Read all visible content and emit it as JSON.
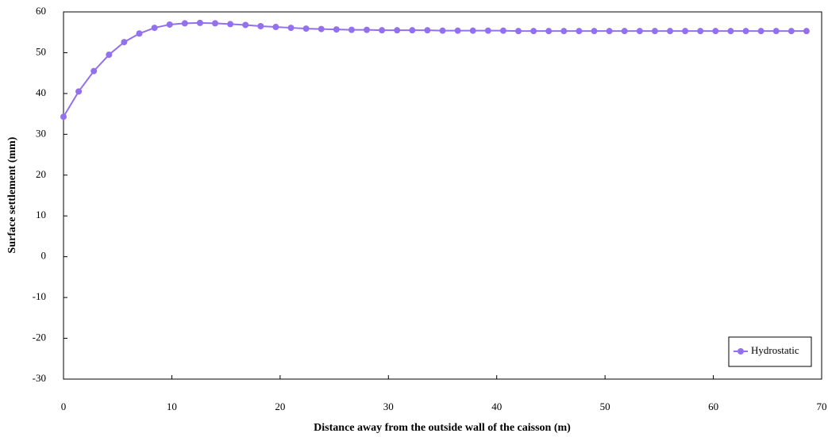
{
  "chart_data": {
    "type": "line",
    "x_label": "Distance away from the outside wall of the caisson (m)",
    "y_label": "Surface settlement (mm)",
    "x": [
      0,
      1.4,
      2.8,
      4.2,
      5.6,
      7,
      8.4,
      9.8,
      11.2,
      12.6,
      14,
      15.4,
      16.8,
      18.2,
      19.6,
      21,
      22.4,
      23.8,
      25.2,
      26.6,
      28,
      29.4,
      30.8,
      32.2,
      33.6,
      35,
      36.4,
      37.8,
      39.2,
      40.6,
      42,
      43.4,
      44.8,
      46.2,
      47.6,
      49,
      50.4,
      51.8,
      53.2,
      54.6,
      56,
      57.4,
      58.8,
      60.2,
      61.6,
      63,
      64.4,
      65.8,
      67.2,
      68.6
    ],
    "series": [
      {
        "name": "Hydrostatic",
        "color": "#9370ee",
        "values": [
          34.3,
          40.5,
          45.5,
          49.5,
          52.6,
          54.7,
          56.1,
          56.9,
          57.2,
          57.3,
          57.2,
          57.0,
          56.8,
          56.5,
          56.3,
          56.1,
          55.9,
          55.8,
          55.7,
          55.6,
          55.6,
          55.5,
          55.5,
          55.5,
          55.5,
          55.4,
          55.4,
          55.4,
          55.4,
          55.4,
          55.3,
          55.3,
          55.3,
          55.3,
          55.3,
          55.3,
          55.3,
          55.3,
          55.3,
          55.3,
          55.3,
          55.3,
          55.3,
          55.3,
          55.3,
          55.3,
          55.3,
          55.3,
          55.3,
          55.3
        ]
      }
    ],
    "xlim": [
      0,
      70
    ],
    "xticks": [
      0,
      10,
      20,
      30,
      40,
      50,
      60,
      70
    ],
    "ylim": [
      -30,
      60
    ],
    "yticks": [
      -30,
      -20,
      -10,
      0,
      10,
      20,
      30,
      40,
      50,
      60
    ],
    "legend": "lower right"
  }
}
